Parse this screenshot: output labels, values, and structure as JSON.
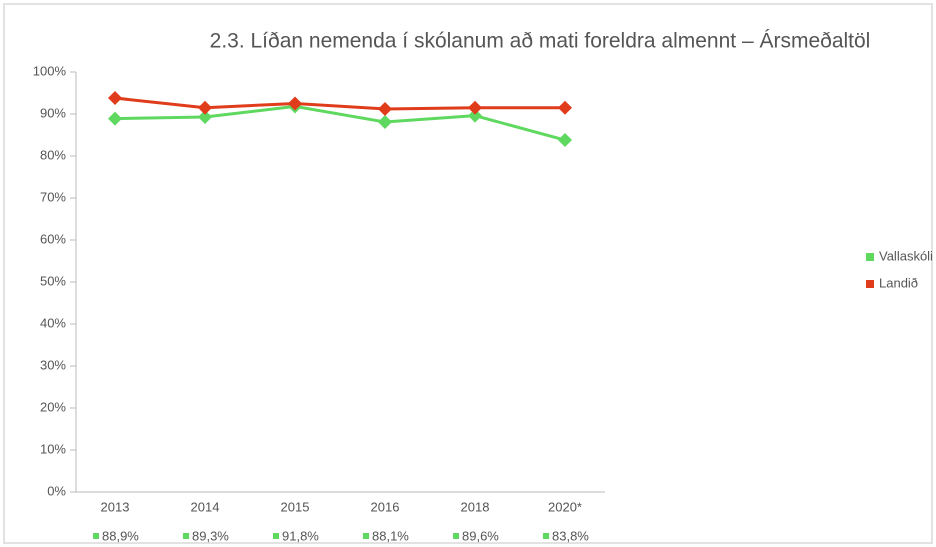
{
  "chart_data": {
    "type": "line",
    "title": "2.3. Líðan nemenda í skólanum að mati foreldra almennt – Ársmeðaltöl",
    "categories": [
      "2013",
      "2014",
      "2015",
      "2016",
      "2018",
      "2020*"
    ],
    "series": [
      {
        "name": "Vallaskóli",
        "color": "#5fd85f",
        "values": [
          88.9,
          89.3,
          91.8,
          88.1,
          89.6,
          83.8
        ],
        "value_labels": [
          "88,9%",
          "89,3%",
          "91,8%",
          "88,1%",
          "89,6%",
          "83,8%"
        ]
      },
      {
        "name": "Landið",
        "color": "#e03c1c",
        "values": [
          93.8,
          91.5,
          92.5,
          91.2,
          91.5,
          91.5
        ]
      }
    ],
    "ylim": [
      0,
      100
    ],
    "yticks": [
      {
        "value": 0,
        "label": "0%"
      },
      {
        "value": 10,
        "label": "10%"
      },
      {
        "value": 20,
        "label": "20%"
      },
      {
        "value": 30,
        "label": "30%"
      },
      {
        "value": 40,
        "label": "40%"
      },
      {
        "value": 50,
        "label": "50%"
      },
      {
        "value": 60,
        "label": "60%"
      },
      {
        "value": 70,
        "label": "70%"
      },
      {
        "value": 80,
        "label": "80%"
      },
      {
        "value": 90,
        "label": "90%"
      },
      {
        "value": 100,
        "label": "100%"
      }
    ],
    "legend": "right"
  }
}
